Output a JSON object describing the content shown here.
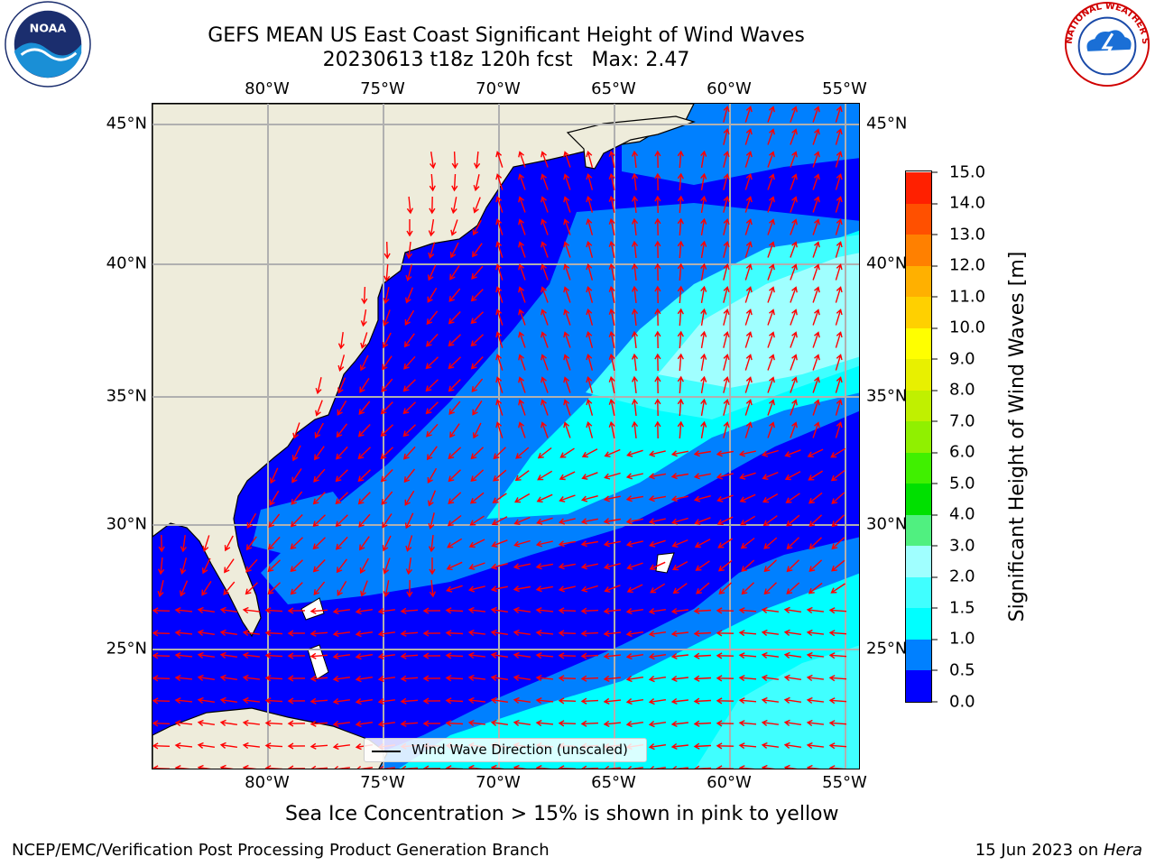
{
  "title": {
    "line1": "GEFS MEAN US East Coast Significant Height of Wind Waves",
    "line2": "20230613 t18z 120h fcst   Max: 2.47"
  },
  "axes": {
    "lon_labels": [
      "80°W",
      "75°W",
      "70°W",
      "65°W",
      "60°W",
      "55°W"
    ],
    "lat_labels": [
      "45°N",
      "40°N",
      "35°N",
      "30°N",
      "25°N"
    ]
  },
  "map": {
    "lon_range": [
      -85,
      -54.2
    ],
    "lat_range": [
      20.5,
      46
    ],
    "land_color": "#eeecdb",
    "gridline_color": "#b0b0b0",
    "arrow_color": "#ff0000",
    "legend_text": "Wind Wave Direction (unscaled)",
    "max_value": 2.47
  },
  "colorbar": {
    "label": "Significant Height of Wind Waves [m]",
    "ticks": [
      "0.0",
      "0.5",
      "1.0",
      "1.5",
      "2.0",
      "3.0",
      "4.0",
      "5.0",
      "6.0",
      "7.0",
      "8.0",
      "9.0",
      "10.0",
      "11.0",
      "12.0",
      "13.0",
      "14.0",
      "15.0"
    ],
    "colors": [
      "#0000ff",
      "#0080ff",
      "#00ffff",
      "#40ffff",
      "#a0ffff",
      "#50f080",
      "#00e000",
      "#40f000",
      "#90f000",
      "#c0f000",
      "#e8f000",
      "#ffff00",
      "#ffd000",
      "#ffb000",
      "#ff8000",
      "#ff5000",
      "#ff2000"
    ]
  },
  "footer": {
    "note": "Sea Ice Concentration > 15% is shown in pink to yellow",
    "credit": "NCEP/EMC/Verification Post Processing Product Generation Branch",
    "date_prefix": "15 Jun 2023 on ",
    "date_host": "Hera"
  },
  "logos": {
    "noaa_text": "NOAA",
    "nws_text": "NATIONAL WEATHER SERVICE"
  }
}
